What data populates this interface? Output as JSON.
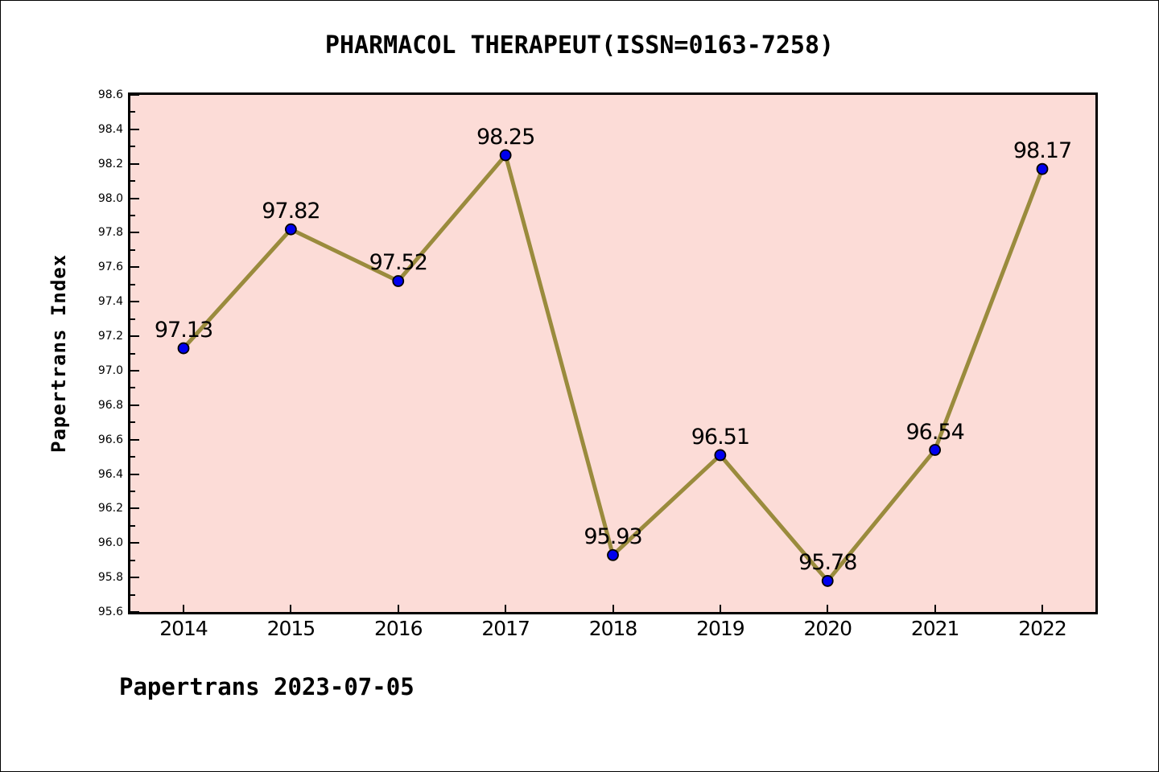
{
  "title": "PHARMACOL THERAPEUT(ISSN=0163-7258)",
  "footer": "Papertrans 2023-07-05",
  "chart_data": {
    "type": "line",
    "title": "PHARMACOL THERAPEUT(ISSN=0163-7258)",
    "categories": [
      "2014",
      "2015",
      "2016",
      "2017",
      "2018",
      "2019",
      "2020",
      "2021",
      "2022"
    ],
    "values": [
      97.13,
      97.82,
      97.52,
      98.25,
      95.93,
      96.51,
      95.78,
      96.54,
      98.17
    ],
    "point_labels": [
      "97.13",
      "97.82",
      "97.52",
      "98.25",
      "95.93",
      "96.51",
      "95.78",
      "96.54",
      "98.17"
    ],
    "xlabel": "",
    "ylabel": "Papertrans Index",
    "ylim": [
      95.6,
      98.6
    ],
    "ytick_major_step": 0.2,
    "ytick_minor_step": 0.1,
    "ytick_labels": [
      "95.6",
      "95.8",
      "96.0",
      "96.2",
      "96.4",
      "96.6",
      "96.8",
      "97.0",
      "97.2",
      "97.4",
      "97.6",
      "97.8",
      "98.0",
      "98.2",
      "98.4",
      "98.6"
    ],
    "grid": false,
    "legend_position": "none",
    "colors": {
      "plot_background": "#fcdcd7",
      "line": "#9a8b3d",
      "marker_fill": "#0000ee",
      "marker_edge": "#000000",
      "text": "#000000",
      "axis": "#000000"
    }
  }
}
